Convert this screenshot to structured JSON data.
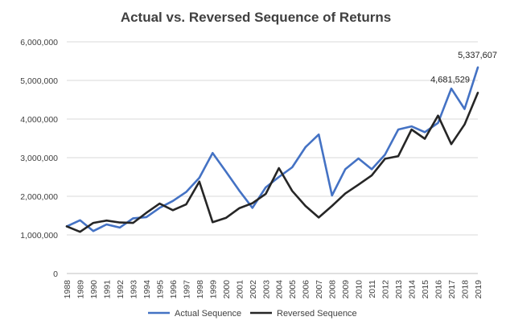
{
  "chart_data": {
    "type": "line",
    "title": "Actual vs. Reversed Sequence of Returns",
    "xlabel": "",
    "ylabel": "",
    "x": [
      "1988",
      "1989",
      "1990",
      "1991",
      "1992",
      "1993",
      "1994",
      "1995",
      "1996",
      "1997",
      "1998",
      "1999",
      "2000",
      "2001",
      "2002",
      "2003",
      "2004",
      "2005",
      "2006",
      "2007",
      "2008",
      "2009",
      "2010",
      "2011",
      "2012",
      "2013",
      "2014",
      "2015",
      "2016",
      "2017",
      "2018",
      "2019"
    ],
    "ylim": [
      0,
      6000000
    ],
    "yticks": [
      0,
      1000000,
      2000000,
      3000000,
      4000000,
      5000000,
      6000000
    ],
    "ytick_labels": [
      "0",
      "1,000,000",
      "2,000,000",
      "3,000,000",
      "4,000,000",
      "5,000,000",
      "6,000,000"
    ],
    "grid": true,
    "legend_position": "bottom",
    "series": [
      {
        "name": "Actual Sequence",
        "color": "#4472c4",
        "values": [
          1220000,
          1380000,
          1100000,
          1270000,
          1190000,
          1430000,
          1460000,
          1700000,
          1880000,
          2110000,
          2480000,
          3120000,
          2640000,
          2150000,
          1700000,
          2230000,
          2500000,
          2750000,
          3270000,
          3600000,
          2020000,
          2700000,
          2980000,
          2700000,
          3080000,
          3730000,
          3810000,
          3660000,
          3900000,
          4790000,
          4260000,
          5337607
        ]
      },
      {
        "name": "Reversed Sequence",
        "color": "#262626",
        "values": [
          1220000,
          1080000,
          1310000,
          1370000,
          1320000,
          1310000,
          1570000,
          1810000,
          1640000,
          1790000,
          2380000,
          1330000,
          1440000,
          1690000,
          1820000,
          2060000,
          2730000,
          2140000,
          1750000,
          1450000,
          1750000,
          2070000,
          2300000,
          2540000,
          2970000,
          3040000,
          3730000,
          3490000,
          4090000,
          3350000,
          3860000,
          4681529
        ]
      }
    ],
    "annotations": [
      {
        "text": "5,337,607",
        "series": 0,
        "index": 31
      },
      {
        "text": "4,681,529",
        "series": 1,
        "index": 31
      }
    ]
  }
}
